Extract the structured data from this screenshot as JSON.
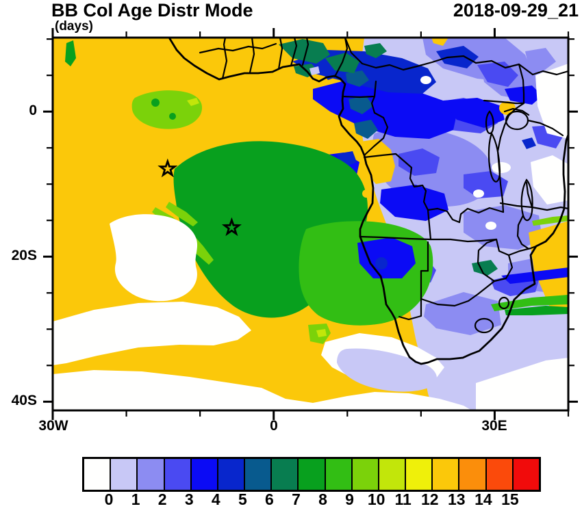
{
  "header": {
    "title": "BB Col Age Distr Mode",
    "units_label": "(days)",
    "timestamp": "2018-09-29_21"
  },
  "chart_data": {
    "type": "heatmap",
    "subtype": "filled-contour-map",
    "title": "BB Col Age Distr Mode",
    "units": "days",
    "timestamp": "2018-09-29_21",
    "extent": {
      "lon_min": -30,
      "lon_max": 40,
      "lat_min": -41.2,
      "lat_max": 10.2
    },
    "x_axis": {
      "tick_labels": [
        "30W",
        "0",
        "30E"
      ],
      "major_lons": [
        -30,
        0,
        30
      ],
      "minor_lons": [
        -20,
        -10,
        10,
        20,
        40
      ]
    },
    "y_axis": {
      "tick_labels": [
        "0",
        "20S",
        "40S"
      ],
      "major_lats": [
        0,
        -20,
        -40
      ],
      "minor_lats": [
        10,
        5,
        -5,
        -10,
        -15,
        -25,
        -30,
        -35
      ]
    },
    "colorbar": {
      "tick_labels": [
        "0",
        "1",
        "2",
        "3",
        "4",
        "5",
        "6",
        "7",
        "8",
        "9",
        "10",
        "11",
        "12",
        "13",
        "14",
        "15"
      ],
      "levels": [
        0,
        1,
        2,
        3,
        4,
        5,
        6,
        7,
        8,
        9,
        10,
        11,
        12,
        13,
        14,
        15
      ],
      "colors": [
        "#FFFFFE",
        "#C8C8F6",
        "#8C8CF2",
        "#4A4AF2",
        "#0B0BF5",
        "#0826CC",
        "#085A8E",
        "#087D50",
        "#08A01E",
        "#32BE14",
        "#7BD20A",
        "#C2E60A",
        "#EFF00A",
        "#FBC80A",
        "#FB8E0B",
        "#FB4A0B",
        "#F10B0B"
      ],
      "orientation": "horizontal"
    },
    "markers": [
      {
        "name": "star-marker-1",
        "lon": -14.4,
        "lat": -7.9
      },
      {
        "name": "star-marker-2",
        "lon": -5.7,
        "lat": -16.0
      }
    ],
    "regions": [
      {
        "age_bin": 13,
        "where": "South Atlantic background west and south of the plume (gold)"
      },
      {
        "age_bin": 8,
        "where": "large smoke plume over the central South Atlantic off Angola (green)"
      },
      {
        "age_bin": 9,
        "where": "Namibia and Benguela coast region (bright green)"
      },
      {
        "age_bin": 10,
        "where": "patch near 7S 10W and thin filaments along the plume edge (lime)"
      },
      {
        "age_bin": 0,
        "where": "subtropical Atlantic low and ocean south of South Africa (white)"
      },
      {
        "age_bin": 1,
        "where": "eastern and southern Africa background (pale lavender)"
      },
      {
        "age_bin": 2,
        "where": "Congo basin and East Africa patches (periwinkle)"
      },
      {
        "age_bin": 4,
        "where": "northern Congo band, Zambia and northern Namibia patches (blue)"
      },
      {
        "age_bin": 5,
        "where": "band over Nigeria/CAR (dark navy)"
      },
      {
        "age_bin": 6,
        "where": "Gulf of Guinea coastal patches (teal)"
      },
      {
        "age_bin": 7,
        "where": "patches over Nigeria and Cameroon (dark sea green)"
      },
      {
        "age_bin": 13,
        "where": "Angola coastal strip and Mozambique coast patches (gold islands)"
      }
    ],
    "grid": false,
    "legend_position": "bottom"
  }
}
